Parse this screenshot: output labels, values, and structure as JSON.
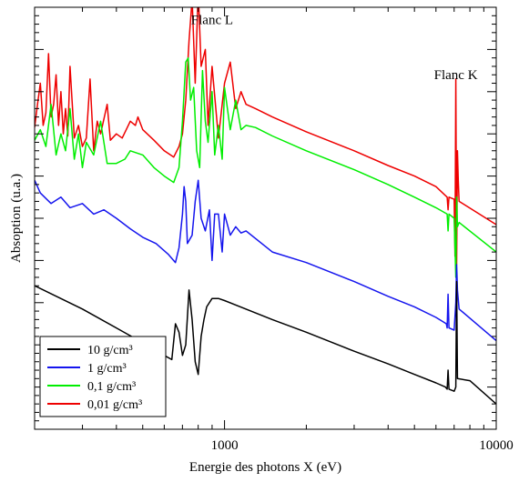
{
  "chart_data": {
    "type": "line",
    "title": "",
    "xlabel": "Energie des photons X (eV)",
    "ylabel": "Absoption (u.a.)",
    "x_scale": "log",
    "xlim": [
      200,
      10000
    ],
    "ylim": [
      0,
      10
    ],
    "grid": false,
    "legend_position": "bottom-left",
    "x_ticks": [
      {
        "value": 1000,
        "label": "1000"
      },
      {
        "value": 10000,
        "label": "10000"
      }
    ],
    "y_ticks_labeled": false,
    "annotations": [
      {
        "text": "Flanc L",
        "x": 900,
        "y": 9.6
      },
      {
        "text": "Flanc K",
        "x": 7100,
        "y": 8.3
      }
    ],
    "series": [
      {
        "name": "10 g/cm³",
        "color": "#000000",
        "points": [
          [
            200,
            3.4
          ],
          [
            300,
            2.85
          ],
          [
            400,
            2.4
          ],
          [
            500,
            2.05
          ],
          [
            600,
            1.75
          ],
          [
            640,
            1.65
          ],
          [
            660,
            2.5
          ],
          [
            680,
            2.3
          ],
          [
            700,
            1.75
          ],
          [
            720,
            2.0
          ],
          [
            740,
            3.3
          ],
          [
            760,
            2.6
          ],
          [
            780,
            1.6
          ],
          [
            800,
            1.3
          ],
          [
            820,
            2.2
          ],
          [
            840,
            2.6
          ],
          [
            860,
            2.9
          ],
          [
            900,
            3.1
          ],
          [
            950,
            3.1
          ],
          [
            1000,
            3.05
          ],
          [
            1500,
            2.6
          ],
          [
            2000,
            2.3
          ],
          [
            3000,
            1.85
          ],
          [
            4000,
            1.55
          ],
          [
            5000,
            1.3
          ],
          [
            6000,
            1.1
          ],
          [
            6500,
            1.0
          ],
          [
            6600,
            0.95
          ],
          [
            6650,
            1.4
          ],
          [
            6700,
            0.95
          ],
          [
            7000,
            0.9
          ],
          [
            7100,
            1.0
          ],
          [
            7150,
            3.5
          ],
          [
            7200,
            1.2
          ],
          [
            8000,
            1.15
          ],
          [
            10000,
            0.6
          ]
        ]
      },
      {
        "name": "1 g/cm³",
        "color": "#1515ee",
        "points": [
          [
            200,
            5.9
          ],
          [
            210,
            5.6
          ],
          [
            230,
            5.35
          ],
          [
            250,
            5.5
          ],
          [
            270,
            5.25
          ],
          [
            300,
            5.35
          ],
          [
            330,
            5.1
          ],
          [
            360,
            5.2
          ],
          [
            400,
            5.0
          ],
          [
            450,
            4.75
          ],
          [
            500,
            4.55
          ],
          [
            560,
            4.4
          ],
          [
            620,
            4.15
          ],
          [
            660,
            3.95
          ],
          [
            680,
            4.3
          ],
          [
            700,
            5.1
          ],
          [
            710,
            5.75
          ],
          [
            720,
            5.4
          ],
          [
            730,
            4.4
          ],
          [
            760,
            4.6
          ],
          [
            780,
            5.4
          ],
          [
            800,
            5.9
          ],
          [
            820,
            5.0
          ],
          [
            850,
            4.7
          ],
          [
            880,
            5.2
          ],
          [
            900,
            4.0
          ],
          [
            920,
            5.1
          ],
          [
            950,
            5.1
          ],
          [
            980,
            4.2
          ],
          [
            1000,
            5.1
          ],
          [
            1050,
            4.6
          ],
          [
            1100,
            4.8
          ],
          [
            1150,
            4.65
          ],
          [
            1200,
            4.7
          ],
          [
            1500,
            4.2
          ],
          [
            2000,
            3.95
          ],
          [
            3000,
            3.5
          ],
          [
            4000,
            3.15
          ],
          [
            5000,
            2.9
          ],
          [
            6000,
            2.65
          ],
          [
            6550,
            2.5
          ],
          [
            6600,
            2.4
          ],
          [
            6650,
            3.2
          ],
          [
            6700,
            2.4
          ],
          [
            7000,
            2.35
          ],
          [
            7100,
            3.0
          ],
          [
            7150,
            3.9
          ],
          [
            7200,
            3.3
          ],
          [
            7300,
            2.85
          ],
          [
            10000,
            2.1
          ]
        ]
      },
      {
        "name": "0,1 g/cm³",
        "color": "#00ee00",
        "points": [
          [
            200,
            6.85
          ],
          [
            210,
            7.1
          ],
          [
            220,
            6.7
          ],
          [
            230,
            7.7
          ],
          [
            240,
            6.5
          ],
          [
            250,
            7.0
          ],
          [
            260,
            6.6
          ],
          [
            270,
            7.6
          ],
          [
            280,
            6.4
          ],
          [
            290,
            7.0
          ],
          [
            300,
            6.2
          ],
          [
            310,
            6.8
          ],
          [
            330,
            6.5
          ],
          [
            350,
            7.3
          ],
          [
            370,
            6.3
          ],
          [
            400,
            6.3
          ],
          [
            430,
            6.4
          ],
          [
            450,
            6.6
          ],
          [
            500,
            6.5
          ],
          [
            550,
            6.2
          ],
          [
            600,
            6.0
          ],
          [
            650,
            5.85
          ],
          [
            680,
            6.2
          ],
          [
            700,
            7.3
          ],
          [
            720,
            8.7
          ],
          [
            735,
            8.8
          ],
          [
            750,
            7.8
          ],
          [
            770,
            8.1
          ],
          [
            790,
            6.6
          ],
          [
            810,
            6.2
          ],
          [
            830,
            8.5
          ],
          [
            850,
            7.3
          ],
          [
            870,
            6.8
          ],
          [
            900,
            8.0
          ],
          [
            920,
            6.5
          ],
          [
            950,
            7.2
          ],
          [
            980,
            6.4
          ],
          [
            1000,
            8.1
          ],
          [
            1050,
            7.1
          ],
          [
            1100,
            7.8
          ],
          [
            1150,
            7.1
          ],
          [
            1200,
            7.2
          ],
          [
            1300,
            7.15
          ],
          [
            1500,
            6.95
          ],
          [
            2000,
            6.6
          ],
          [
            3000,
            6.15
          ],
          [
            4000,
            5.8
          ],
          [
            5000,
            5.5
          ],
          [
            6000,
            5.25
          ],
          [
            6600,
            5.1
          ],
          [
            6650,
            4.7
          ],
          [
            6700,
            5.1
          ],
          [
            7000,
            5.0
          ],
          [
            7100,
            3.6
          ],
          [
            7150,
            5.5
          ],
          [
            7200,
            4.8
          ],
          [
            7300,
            4.9
          ],
          [
            10000,
            4.2
          ]
        ]
      },
      {
        "name": "0,01 g/cm³",
        "color": "#ee0000",
        "points": [
          [
            200,
            7.15
          ],
          [
            205,
            7.7
          ],
          [
            210,
            8.2
          ],
          [
            215,
            7.2
          ],
          [
            220,
            7.5
          ],
          [
            225,
            8.9
          ],
          [
            230,
            7.4
          ],
          [
            235,
            7.7
          ],
          [
            240,
            8.4
          ],
          [
            245,
            7.2
          ],
          [
            250,
            8.0
          ],
          [
            255,
            7.0
          ],
          [
            260,
            7.6
          ],
          [
            265,
            6.95
          ],
          [
            270,
            8.6
          ],
          [
            280,
            6.9
          ],
          [
            290,
            7.2
          ],
          [
            300,
            6.7
          ],
          [
            310,
            6.9
          ],
          [
            320,
            8.3
          ],
          [
            330,
            6.6
          ],
          [
            340,
            7.3
          ],
          [
            350,
            7.0
          ],
          [
            370,
            7.7
          ],
          [
            380,
            6.85
          ],
          [
            400,
            7.0
          ],
          [
            420,
            6.9
          ],
          [
            450,
            7.3
          ],
          [
            470,
            7.2
          ],
          [
            480,
            7.4
          ],
          [
            500,
            7.1
          ],
          [
            550,
            6.85
          ],
          [
            600,
            6.6
          ],
          [
            650,
            6.45
          ],
          [
            680,
            6.7
          ],
          [
            700,
            7.0
          ],
          [
            720,
            7.8
          ],
          [
            740,
            9.2
          ],
          [
            760,
            10.2
          ],
          [
            780,
            8.2
          ],
          [
            800,
            10.4
          ],
          [
            820,
            8.6
          ],
          [
            850,
            9.0
          ],
          [
            870,
            7.2
          ],
          [
            900,
            8.6
          ],
          [
            950,
            6.9
          ],
          [
            1000,
            8.2
          ],
          [
            1050,
            8.7
          ],
          [
            1100,
            7.6
          ],
          [
            1150,
            8.0
          ],
          [
            1200,
            7.7
          ],
          [
            1300,
            7.6
          ],
          [
            1500,
            7.4
          ],
          [
            2000,
            7.05
          ],
          [
            3000,
            6.6
          ],
          [
            4000,
            6.25
          ],
          [
            5000,
            6.0
          ],
          [
            6000,
            5.75
          ],
          [
            6600,
            5.5
          ],
          [
            6650,
            5.2
          ],
          [
            6700,
            5.5
          ],
          [
            7000,
            5.45
          ],
          [
            7050,
            4.1
          ],
          [
            7100,
            8.3
          ],
          [
            7150,
            3.9
          ],
          [
            7200,
            6.6
          ],
          [
            7250,
            5.9
          ],
          [
            7300,
            5.4
          ],
          [
            10000,
            4.85
          ]
        ]
      }
    ]
  }
}
